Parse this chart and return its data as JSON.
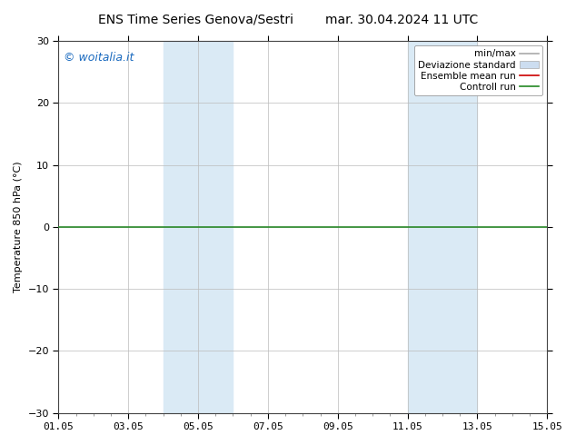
{
  "title": "ENS Time Series Genova/Sestri",
  "subtitle": "mar. 30.04.2024 11 UTC",
  "ylabel": "Temperature 850 hPa (°C)",
  "ylim": [
    -30,
    30
  ],
  "yticks": [
    -30,
    -20,
    -10,
    0,
    10,
    20,
    30
  ],
  "xtick_labels": [
    "01.05",
    "03.05",
    "05.05",
    "07.05",
    "09.05",
    "11.05",
    "13.05",
    "15.05"
  ],
  "xtick_positions": [
    0,
    2,
    4,
    6,
    8,
    10,
    12,
    14
  ],
  "xlim": [
    0,
    14
  ],
  "shaded_bands": [
    {
      "xstart": 3,
      "xend": 5,
      "color": "#daeaf5"
    },
    {
      "xstart": 10,
      "xend": 12,
      "color": "#daeaf5"
    }
  ],
  "hline_y": 0,
  "hline_color": "#2a8a2a",
  "hline_lw": 1.2,
  "watermark": "© woitalia.it",
  "watermark_color": "#1a6abf",
  "legend_entries": [
    {
      "label": "min/max",
      "color": "#aaaaaa",
      "lw": 1.2,
      "style": "line"
    },
    {
      "label": "Deviazione standard",
      "color": "#ccddf0",
      "lw": 8,
      "style": "band"
    },
    {
      "label": "Ensemble mean run",
      "color": "#cc0000",
      "lw": 1.2,
      "style": "line"
    },
    {
      "label": "Controll run",
      "color": "#228822",
      "lw": 1.2,
      "style": "line"
    }
  ],
  "bg_color": "#ffffff",
  "plot_bg_color": "#ffffff",
  "grid_color": "#bbbbbb",
  "title_fontsize": 10,
  "axis_fontsize": 8,
  "tick_fontsize": 8,
  "legend_fontsize": 7.5,
  "watermark_fontsize": 9
}
